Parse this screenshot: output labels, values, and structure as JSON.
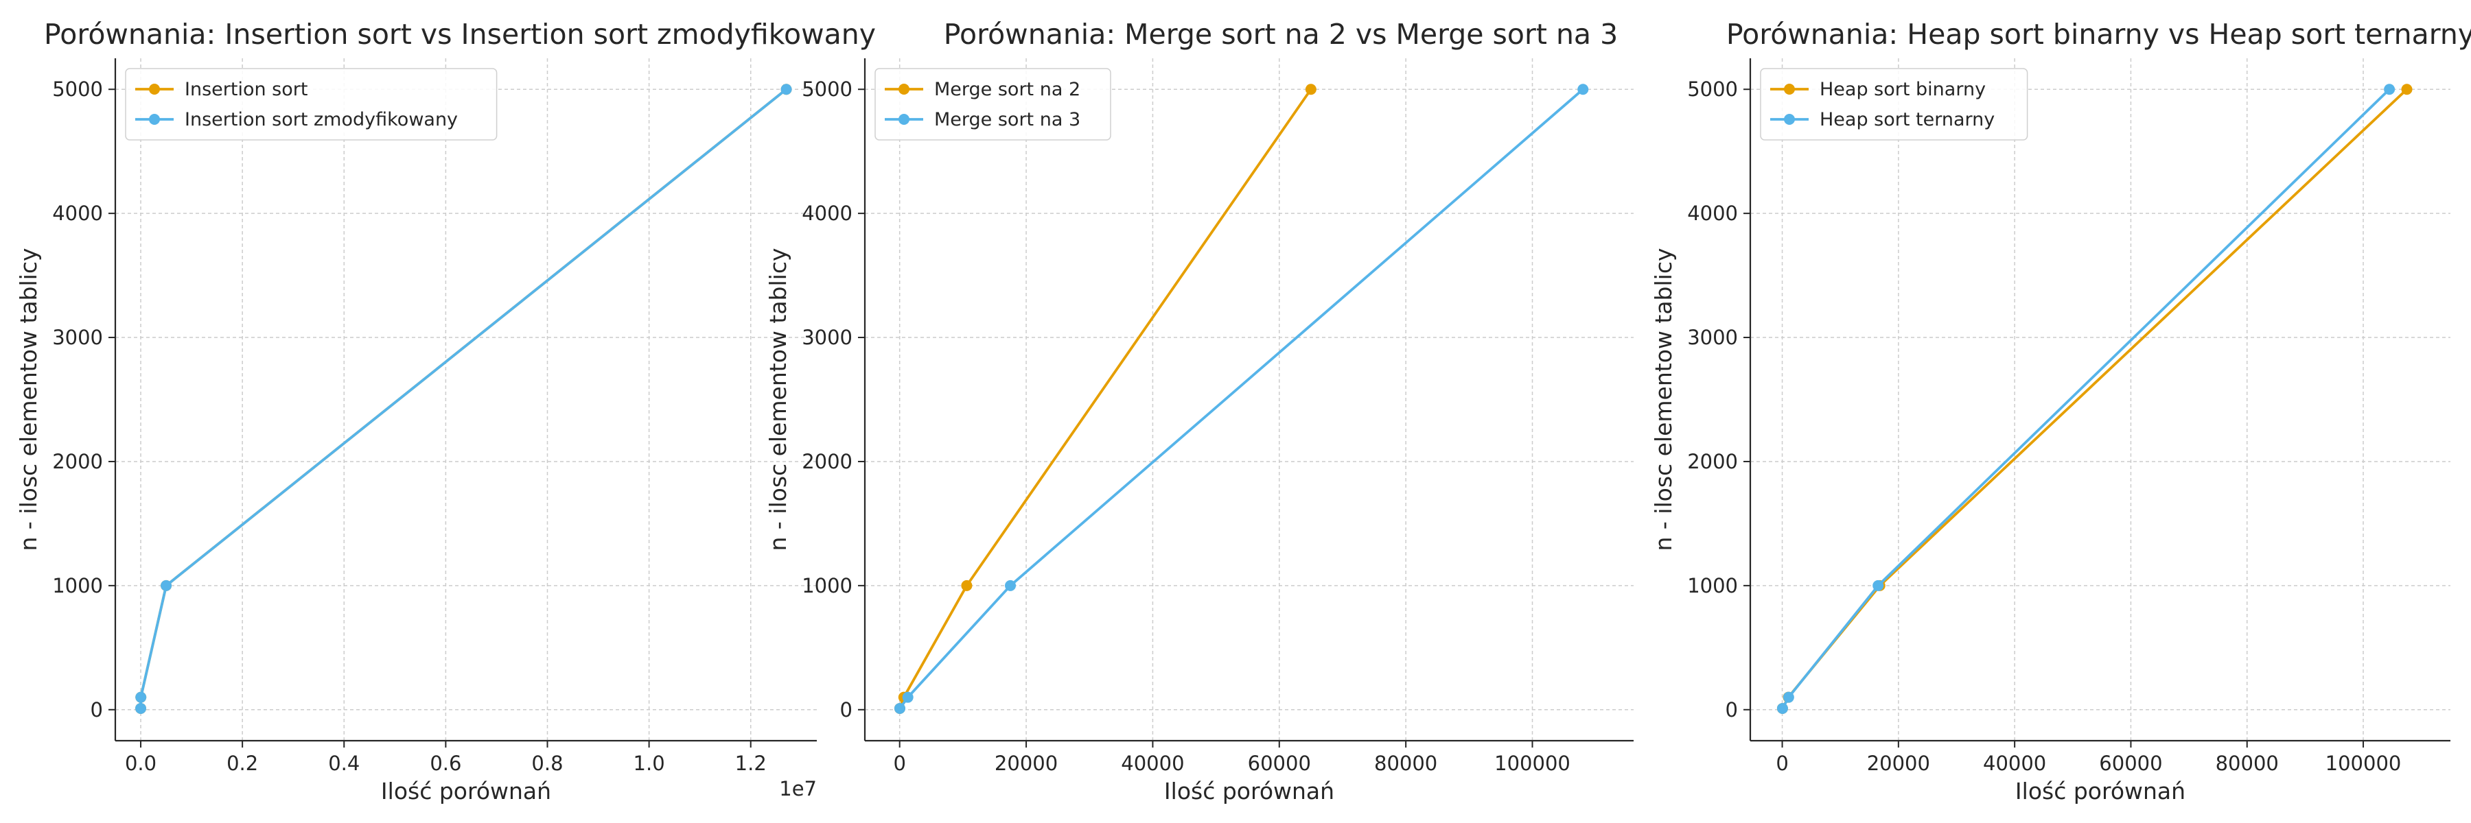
{
  "chart_data": [
    {
      "type": "line",
      "title": "Porównania: Insertion sort vs Insertion sort zmodyfikowany",
      "xlabel": "Ilość porównań",
      "ylabel": "n - ilosc elementow tablicy",
      "x_offset_label": "1e7",
      "xlim": [
        -500000,
        13300000
      ],
      "ylim": [
        -250,
        5250
      ],
      "xticks": [
        0,
        2000000,
        4000000,
        6000000,
        8000000,
        10000000,
        12000000
      ],
      "xtick_labels": [
        "0.0",
        "0.2",
        "0.4",
        "0.6",
        "0.8",
        "1.0",
        "1.2"
      ],
      "yticks": [
        0,
        1000,
        2000,
        3000,
        4000,
        5000
      ],
      "ytick_labels": [
        "0",
        "1000",
        "2000",
        "3000",
        "4000",
        "5000"
      ],
      "grid": true,
      "legend_position": "top-left",
      "series": [
        {
          "name": "Insertion sort",
          "color": "#E69F00",
          "x": [
            10,
            2500,
            500000,
            12700000
          ],
          "y": [
            10,
            100,
            1000,
            5000
          ]
        },
        {
          "name": "Insertion sort zmodyfikowany",
          "color": "#56B4E9",
          "x": [
            10,
            2500,
            500000,
            12700000
          ],
          "y": [
            10,
            100,
            1000,
            5000
          ]
        }
      ]
    },
    {
      "type": "line",
      "title": "Porównania: Merge sort na 2 vs Merge sort na 3",
      "xlabel": "Ilość porównań",
      "ylabel": "n - ilosc elementow tablicy",
      "xlim": [
        -5500,
        116000
      ],
      "ylim": [
        -250,
        5250
      ],
      "xticks": [
        0,
        20000,
        40000,
        60000,
        80000,
        100000
      ],
      "xtick_labels": [
        "0",
        "20000",
        "40000",
        "60000",
        "80000",
        "100000"
      ],
      "yticks": [
        0,
        1000,
        2000,
        3000,
        4000,
        5000
      ],
      "ytick_labels": [
        "0",
        "1000",
        "2000",
        "3000",
        "4000",
        "5000"
      ],
      "grid": true,
      "legend_position": "top-left",
      "series": [
        {
          "name": "Merge sort na 2",
          "color": "#E69F00",
          "x": [
            25,
            660,
            10600,
            65000
          ],
          "y": [
            10,
            100,
            1000,
            5000
          ]
        },
        {
          "name": "Merge sort na 3",
          "color": "#56B4E9",
          "x": [
            30,
            1300,
            17500,
            108000
          ],
          "y": [
            10,
            100,
            1000,
            5000
          ]
        }
      ]
    },
    {
      "type": "line",
      "title": "Porównania: Heap sort binarny vs Heap sort ternarny",
      "xlabel": "Ilość porównań",
      "ylabel": "n - ilosc elementow tablicy",
      "xlim": [
        -5500,
        115000
      ],
      "ylim": [
        -250,
        5250
      ],
      "xticks": [
        0,
        20000,
        40000,
        60000,
        80000,
        100000
      ],
      "xtick_labels": [
        "0",
        "20000",
        "40000",
        "60000",
        "80000",
        "100000"
      ],
      "yticks": [
        0,
        1000,
        2000,
        3000,
        4000,
        5000
      ],
      "ytick_labels": [
        "0",
        "1000",
        "2000",
        "3000",
        "4000",
        "5000"
      ],
      "grid": true,
      "legend_position": "top-left",
      "series": [
        {
          "name": "Heap sort binarny",
          "color": "#E69F00",
          "x": [
            40,
            1050,
            16800,
            107500
          ],
          "y": [
            10,
            100,
            1000,
            5000
          ]
        },
        {
          "name": "Heap sort ternarny",
          "color": "#56B4E9",
          "x": [
            45,
            1100,
            16500,
            104500
          ],
          "y": [
            10,
            100,
            1000,
            5000
          ]
        }
      ]
    }
  ]
}
